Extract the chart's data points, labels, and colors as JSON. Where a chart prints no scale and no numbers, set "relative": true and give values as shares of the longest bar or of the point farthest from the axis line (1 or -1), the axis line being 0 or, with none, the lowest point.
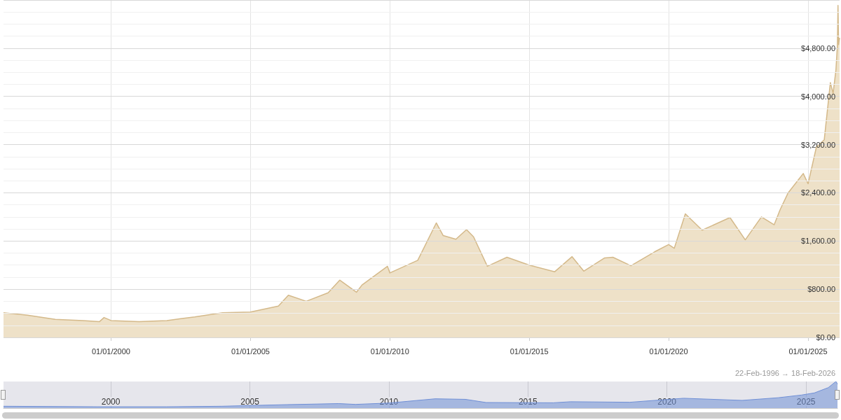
{
  "chart_data": [
    {
      "type": "area",
      "x": [
        "1996-02-22",
        "1997-01-01",
        "1998-01-01",
        "1999-01-01",
        "1999-08-01",
        "1999-10-01",
        "2000-01-01",
        "2001-01-01",
        "2001-07-01",
        "2002-01-01",
        "2002-07-01",
        "2003-01-01",
        "2004-01-01",
        "2005-01-01",
        "2006-01-01",
        "2006-05-12",
        "2007-01-01",
        "2007-10-15",
        "2008-03-15",
        "2008-10-20",
        "2009-01-01",
        "2009-12-01",
        "2010-01-01",
        "2011-01-01",
        "2011-09-01",
        "2011-12-01",
        "2012-05-15",
        "2012-10-01",
        "2013-01-01",
        "2013-07-01",
        "2014-03-15",
        "2015-01-01",
        "2015-12-01",
        "2016-07-15",
        "2016-12-15",
        "2017-09-15",
        "2018-01-01",
        "2018-08-25",
        "2019-07-01",
        "2020-01-01",
        "2020-03-15",
        "2020-08-07",
        "2021-03-15",
        "2022-03-15",
        "2022-10-01",
        "2023-05-01",
        "2023-10-15",
        "2024-01-01",
        "2024-04-15",
        "2024-10-30",
        "2025-01-01",
        "2025-04-20",
        "2025-08-01",
        "2025-10-20",
        "2025-11-25",
        "2026-01-01",
        "2026-01-20",
        "2026-01-28",
        "2026-02-05",
        "2026-02-18"
      ],
      "series": [
        {
          "color": "#d4b98a",
          "values": [
            410,
            370,
            300,
            280,
            260,
            330,
            280,
            260,
            270,
            280,
            310,
            340,
            410,
            420,
            520,
            700,
            600,
            740,
            950,
            750,
            870,
            1180,
            1070,
            1280,
            1900,
            1690,
            1630,
            1790,
            1670,
            1180,
            1330,
            1200,
            1090,
            1340,
            1100,
            1320,
            1330,
            1190,
            1420,
            1540,
            1480,
            2050,
            1780,
            1990,
            1620,
            2000,
            1870,
            2120,
            2400,
            2720,
            2550,
            3160,
            3280,
            4230,
            4050,
            4440,
            4840,
            5510,
            4860,
            4970
          ]
        }
      ],
      "xlim": [
        "1996-02-22",
        "2026-02-18"
      ],
      "xticks": [
        {
          "value": "2000-01-01",
          "label": "01/01/2000"
        },
        {
          "value": "2005-01-01",
          "label": "01/01/2005"
        },
        {
          "value": "2010-01-01",
          "label": "01/01/2010"
        },
        {
          "value": "2015-01-01",
          "label": "01/01/2015"
        },
        {
          "value": "2020-01-01",
          "label": "01/01/2020"
        },
        {
          "value": "2025-01-01",
          "label": "01/01/2025"
        }
      ],
      "ylim": [
        0,
        5600
      ],
      "yticks": [
        {
          "value": 0,
          "label": "$0.00"
        },
        {
          "value": 800,
          "label": "$800.00"
        },
        {
          "value": 1600,
          "label": "$1,600.00"
        },
        {
          "value": 2400,
          "label": "$2,400.00"
        },
        {
          "value": 3200,
          "label": "$3,200.00"
        },
        {
          "value": 4000,
          "label": "$4,000.00"
        },
        {
          "value": 4800,
          "label": "$4,800.00"
        }
      ],
      "grid": true
    },
    {
      "type": "area",
      "relative": true,
      "x": [
        "1996-02-22",
        "1999-07-01",
        "2002-01-01",
        "2004-01-01",
        "2006-05-01",
        "2008-03-15",
        "2008-10-20",
        "2010-01-01",
        "2011-09-01",
        "2012-10-01",
        "2013-07-01",
        "2015-12-01",
        "2016-07-15",
        "2018-09-01",
        "2020-08-07",
        "2022-09-15",
        "2024-01-01",
        "2024-10-30",
        "2025-04-20",
        "2025-10-20",
        "2026-01-28",
        "2026-02-18"
      ],
      "series": [
        {
          "color": "#6f8fd6",
          "values": [
            0.07,
            0.05,
            0.05,
            0.07,
            0.13,
            0.17,
            0.14,
            0.19,
            0.35,
            0.33,
            0.21,
            0.2,
            0.24,
            0.22,
            0.37,
            0.29,
            0.39,
            0.49,
            0.57,
            0.77,
            1.0,
            0.9
          ]
        }
      ],
      "xlim": [
        "1996-02-22",
        "2026-02-18"
      ],
      "xticks": [
        {
          "value": "2000-01-01",
          "label": "2000"
        },
        {
          "value": "2005-01-01",
          "label": "2005"
        },
        {
          "value": "2010-01-01",
          "label": "2010"
        },
        {
          "value": "2015-01-01",
          "label": "2015"
        },
        {
          "value": "2020-01-01",
          "label": "2020"
        },
        {
          "value": "2025-01-01",
          "label": "2025"
        }
      ],
      "grid": "x",
      "annotations": [
        "22-Feb-1996 → 18-Feb-2026"
      ]
    }
  ]
}
